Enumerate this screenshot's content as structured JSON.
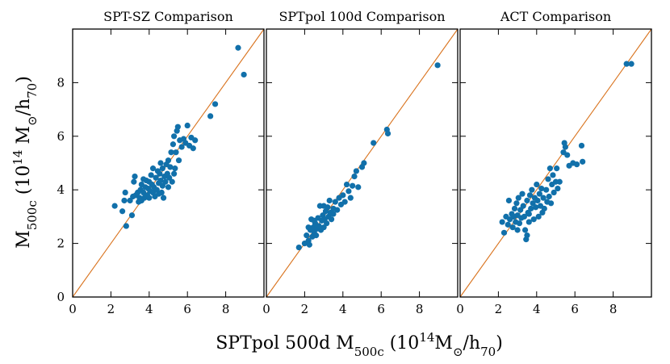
{
  "colors": {
    "points": "#1170aa",
    "reference_line": "#d9731e",
    "axes": "#000000"
  },
  "chart_data": {
    "type": "scatter",
    "xlabel": "SPTpol 500d M500c (10^14 M⊙/h70)",
    "ylabel": "M500c (10^14 M⊙/h70)",
    "xlim": [
      0,
      10
    ],
    "ylim": [
      0,
      10
    ],
    "xticks": [
      0,
      2,
      4,
      6,
      8
    ],
    "yticks": [
      0,
      2,
      4,
      6,
      8
    ],
    "reference_line": "y = x",
    "panels": [
      {
        "title": "SPT-SZ Comparison",
        "points": [
          [
            2.2,
            3.4
          ],
          [
            2.6,
            3.2
          ],
          [
            2.7,
            3.6
          ],
          [
            2.8,
            2.65
          ],
          [
            2.75,
            3.9
          ],
          [
            3.0,
            3.6
          ],
          [
            3.1,
            3.05
          ],
          [
            3.15,
            3.75
          ],
          [
            3.2,
            4.3
          ],
          [
            3.25,
            4.5
          ],
          [
            3.3,
            3.8
          ],
          [
            3.4,
            3.9
          ],
          [
            3.45,
            3.55
          ],
          [
            3.5,
            3.7
          ],
          [
            3.55,
            4.0
          ],
          [
            3.6,
            3.6
          ],
          [
            3.6,
            4.2
          ],
          [
            3.7,
            3.9
          ],
          [
            3.75,
            3.7
          ],
          [
            3.8,
            4.1
          ],
          [
            3.85,
            4.35
          ],
          [
            3.9,
            3.8
          ],
          [
            3.95,
            4.05
          ],
          [
            4.0,
            3.7
          ],
          [
            4.0,
            4.3
          ],
          [
            4.05,
            3.95
          ],
          [
            4.1,
            4.55
          ],
          [
            4.15,
            4.2
          ],
          [
            4.2,
            3.9
          ],
          [
            4.2,
            4.8
          ],
          [
            4.25,
            4.1
          ],
          [
            4.3,
            3.75
          ],
          [
            4.35,
            4.45
          ],
          [
            4.4,
            4.0
          ],
          [
            4.45,
            4.7
          ],
          [
            4.5,
            4.25
          ],
          [
            4.5,
            3.85
          ],
          [
            4.55,
            4.6
          ],
          [
            4.6,
            4.35
          ],
          [
            4.65,
            3.9
          ],
          [
            4.7,
            4.8
          ],
          [
            4.7,
            4.15
          ],
          [
            4.75,
            3.7
          ],
          [
            4.8,
            4.5
          ],
          [
            4.85,
            4.3
          ],
          [
            4.9,
            4.95
          ],
          [
            4.95,
            4.6
          ],
          [
            5.0,
            4.1
          ],
          [
            5.0,
            5.1
          ],
          [
            5.05,
            4.45
          ],
          [
            5.1,
            4.85
          ],
          [
            5.15,
            5.4
          ],
          [
            5.2,
            4.3
          ],
          [
            5.25,
            5.7
          ],
          [
            5.3,
            6.0
          ],
          [
            5.35,
            4.8
          ],
          [
            5.4,
            5.4
          ],
          [
            5.45,
            6.2
          ],
          [
            5.5,
            6.35
          ],
          [
            5.55,
            5.1
          ],
          [
            5.6,
            5.85
          ],
          [
            5.7,
            5.6
          ],
          [
            5.8,
            5.9
          ],
          [
            5.9,
            5.75
          ],
          [
            6.0,
            6.4
          ],
          [
            6.1,
            5.65
          ],
          [
            6.2,
            5.95
          ],
          [
            6.3,
            5.55
          ],
          [
            6.4,
            5.85
          ],
          [
            7.2,
            6.75
          ],
          [
            7.45,
            7.2
          ],
          [
            8.65,
            9.3
          ],
          [
            8.95,
            8.3
          ],
          [
            3.7,
            4.4
          ],
          [
            4.6,
            5.0
          ],
          [
            5.3,
            4.6
          ]
        ]
      },
      {
        "title": "SPTpol 100d Comparison",
        "points": [
          [
            1.7,
            1.85
          ],
          [
            2.0,
            2.0
          ],
          [
            2.1,
            2.3
          ],
          [
            2.2,
            2.1
          ],
          [
            2.25,
            1.95
          ],
          [
            2.3,
            2.5
          ],
          [
            2.35,
            2.9
          ],
          [
            2.4,
            2.25
          ],
          [
            2.45,
            2.6
          ],
          [
            2.5,
            2.4
          ],
          [
            2.55,
            2.75
          ],
          [
            2.6,
            2.3
          ],
          [
            2.65,
            2.55
          ],
          [
            2.7,
            2.95
          ],
          [
            2.75,
            2.65
          ],
          [
            2.8,
            3.4
          ],
          [
            2.85,
            2.5
          ],
          [
            2.9,
            2.85
          ],
          [
            2.95,
            3.05
          ],
          [
            3.0,
            2.6
          ],
          [
            3.05,
            2.9
          ],
          [
            3.1,
            3.2
          ],
          [
            3.15,
            2.75
          ],
          [
            3.2,
            3.35
          ],
          [
            3.25,
            3.0
          ],
          [
            3.3,
            3.6
          ],
          [
            3.35,
            3.15
          ],
          [
            3.4,
            2.9
          ],
          [
            3.5,
            3.3
          ],
          [
            3.6,
            3.55
          ],
          [
            3.7,
            3.25
          ],
          [
            3.8,
            3.7
          ],
          [
            3.9,
            3.45
          ],
          [
            4.0,
            3.8
          ],
          [
            4.1,
            3.55
          ],
          [
            4.2,
            4.2
          ],
          [
            4.3,
            3.95
          ],
          [
            4.4,
            3.7
          ],
          [
            4.5,
            4.15
          ],
          [
            4.6,
            4.5
          ],
          [
            4.7,
            4.7
          ],
          [
            4.8,
            4.1
          ],
          [
            5.0,
            4.85
          ],
          [
            5.1,
            5.0
          ],
          [
            5.6,
            5.75
          ],
          [
            6.3,
            6.25
          ],
          [
            6.35,
            6.1
          ],
          [
            8.95,
            8.65
          ],
          [
            2.5,
            2.85
          ],
          [
            3.0,
            3.4
          ],
          [
            3.5,
            3.1
          ],
          [
            2.2,
            2.6
          ]
        ]
      },
      {
        "title": "ACT Comparison",
        "points": [
          [
            2.2,
            2.8
          ],
          [
            2.3,
            2.4
          ],
          [
            2.4,
            3.0
          ],
          [
            2.5,
            2.7
          ],
          [
            2.55,
            3.6
          ],
          [
            2.6,
            2.9
          ],
          [
            2.7,
            3.1
          ],
          [
            2.75,
            2.6
          ],
          [
            2.8,
            3.0
          ],
          [
            2.85,
            3.3
          ],
          [
            2.9,
            2.8
          ],
          [
            2.95,
            3.5
          ],
          [
            3.0,
            3.05
          ],
          [
            3.05,
            3.7
          ],
          [
            3.1,
            2.75
          ],
          [
            3.15,
            3.25
          ],
          [
            3.2,
            2.95
          ],
          [
            3.25,
            3.85
          ],
          [
            3.3,
            3.4
          ],
          [
            3.35,
            3.0
          ],
          [
            3.4,
            2.5
          ],
          [
            3.45,
            2.15
          ],
          [
            3.5,
            3.6
          ],
          [
            3.5,
            2.3
          ],
          [
            3.55,
            3.15
          ],
          [
            3.6,
            2.8
          ],
          [
            3.65,
            3.8
          ],
          [
            3.7,
            3.3
          ],
          [
            3.75,
            4.0
          ],
          [
            3.8,
            3.5
          ],
          [
            3.85,
            2.9
          ],
          [
            3.9,
            3.7
          ],
          [
            3.95,
            3.35
          ],
          [
            4.0,
            4.2
          ],
          [
            4.05,
            3.6
          ],
          [
            4.1,
            3.0
          ],
          [
            4.15,
            3.85
          ],
          [
            4.2,
            3.4
          ],
          [
            4.25,
            4.05
          ],
          [
            4.3,
            3.15
          ],
          [
            4.35,
            3.7
          ],
          [
            4.4,
            3.3
          ],
          [
            4.5,
            4.0
          ],
          [
            4.55,
            3.55
          ],
          [
            4.6,
            4.4
          ],
          [
            4.65,
            3.75
          ],
          [
            4.7,
            4.8
          ],
          [
            4.75,
            3.5
          ],
          [
            4.8,
            4.2
          ],
          [
            4.85,
            4.55
          ],
          [
            4.9,
            3.9
          ],
          [
            5.0,
            4.3
          ],
          [
            5.05,
            4.8
          ],
          [
            5.1,
            4.05
          ],
          [
            5.2,
            4.3
          ],
          [
            5.4,
            5.4
          ],
          [
            5.45,
            5.75
          ],
          [
            5.5,
            5.6
          ],
          [
            5.6,
            5.3
          ],
          [
            5.7,
            4.9
          ],
          [
            5.9,
            5.0
          ],
          [
            6.1,
            4.95
          ],
          [
            6.35,
            5.65
          ],
          [
            6.4,
            5.05
          ],
          [
            8.7,
            8.7
          ],
          [
            8.95,
            8.7
          ],
          [
            3.0,
            2.5
          ],
          [
            3.6,
            3.1
          ]
        ]
      }
    ]
  }
}
